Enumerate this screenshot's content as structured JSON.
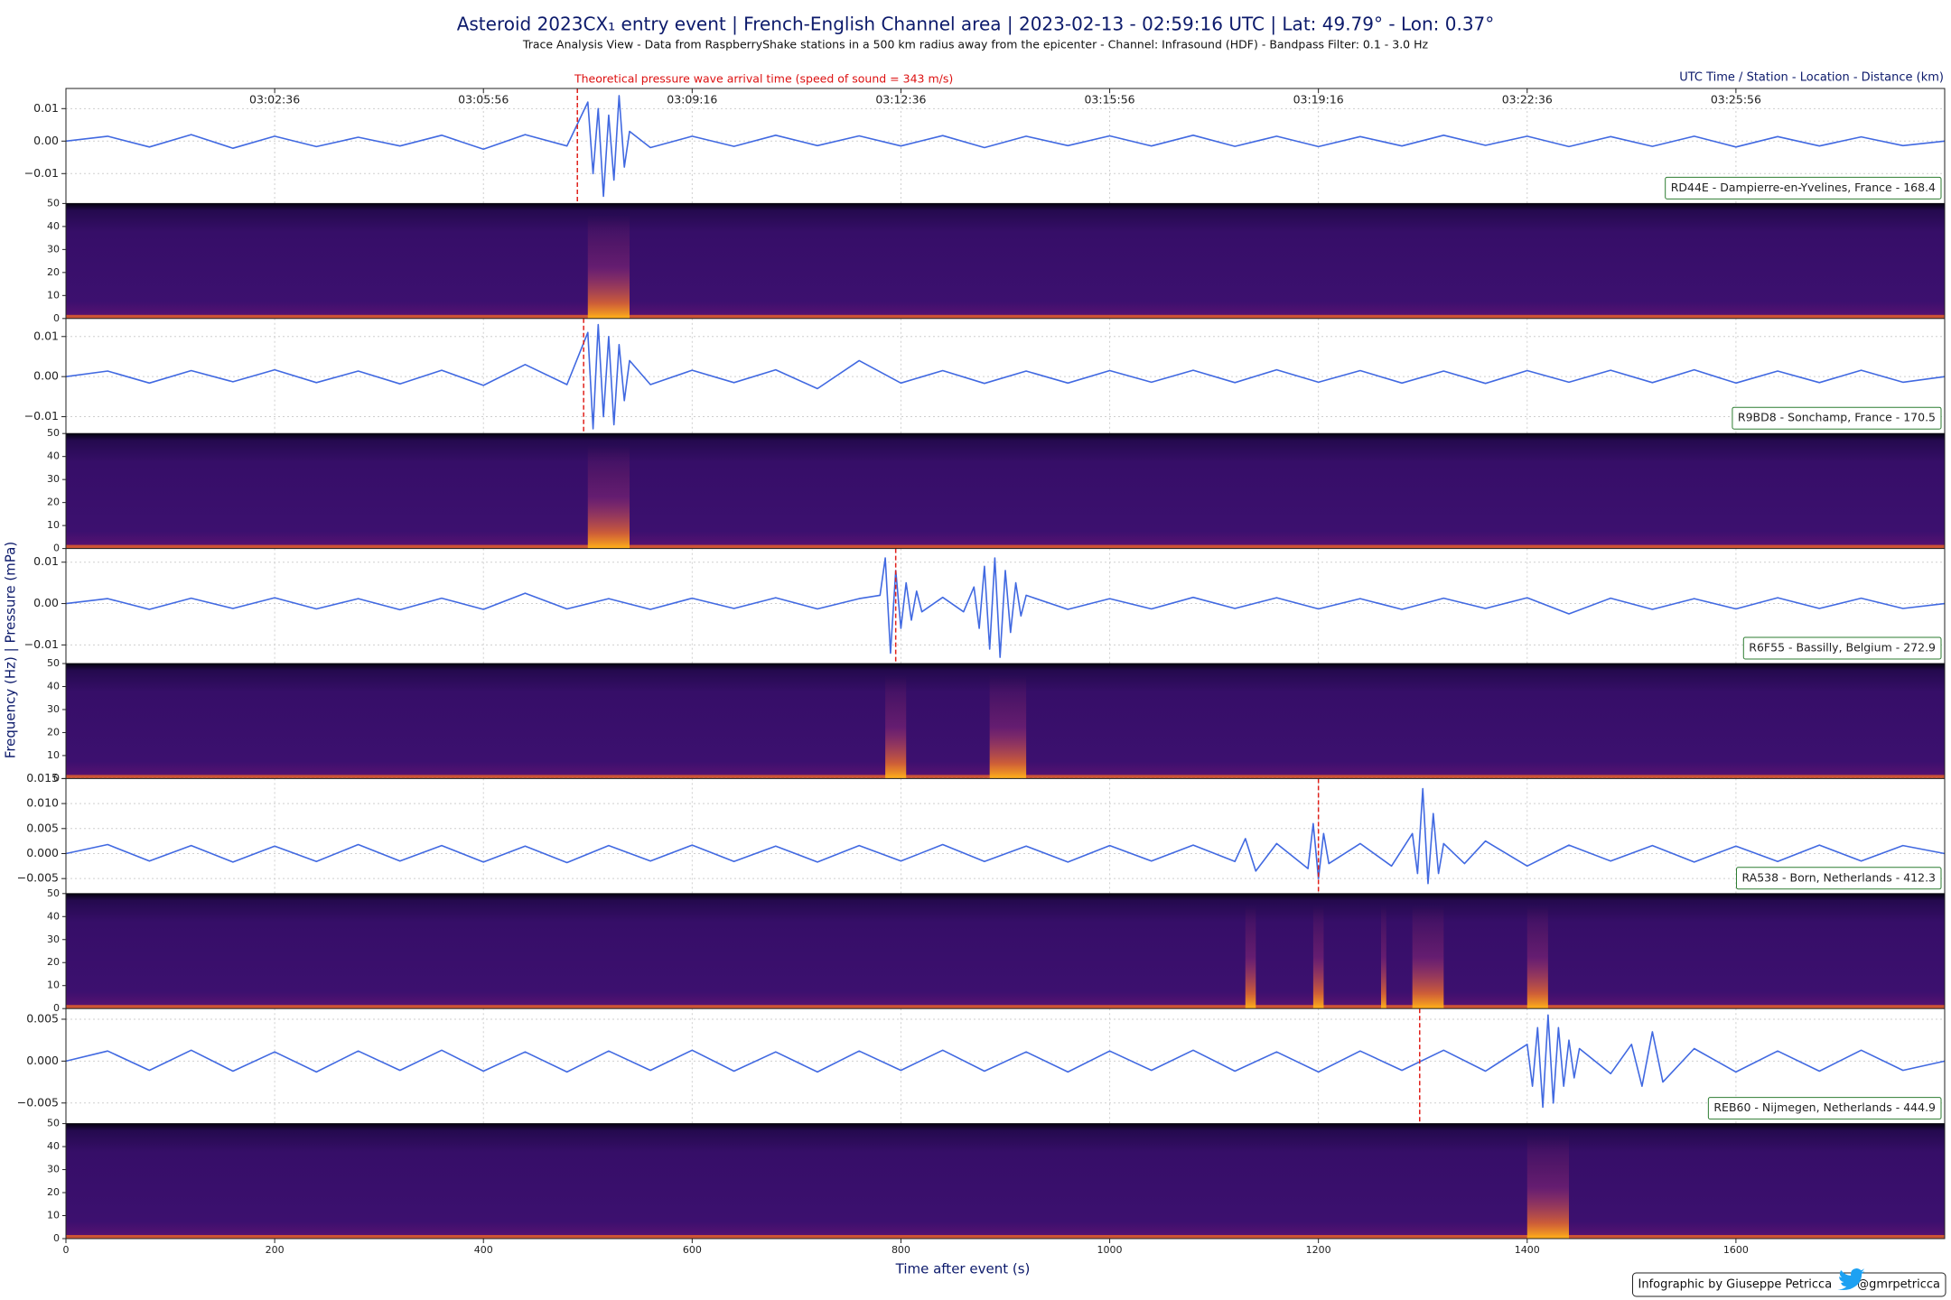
{
  "chart_data": {
    "type": "line",
    "title": "Asteroid 2023CX₁ entry event | French-English Channel area | 2023-02-13 - 02:59:16 UTC | Lat: 49.79° - Lon: 0.37°",
    "subtitle": "Trace Analysis View - Data from RaspberryShake stations in a 500 km radius away from the epicenter - Channel: Infrasound (HDF) - Bandpass Filter: 0.1 - 3.0 Hz",
    "header_right": "UTC Time / Station - Location - Distance (km)",
    "annotation": "Theoretical pressure wave arrival time (speed of sound = 343 m/s)",
    "ylabel": "Frequency (Hz) | Pressure (mPa)",
    "xlabel": "Time after event (s)",
    "credit": "Infographic by Giuseppe Petricca",
    "handle": "@gmrpetricca",
    "color": "#4169e1",
    "arrival_color": "#e0201a",
    "grid": true,
    "xlim": [
      0,
      1800
    ],
    "xticks": [
      0,
      200,
      400,
      600,
      800,
      1000,
      1200,
      1400,
      1600
    ],
    "top_xticks": [
      {
        "value": 200,
        "label": "03:02:36"
      },
      {
        "value": 400,
        "label": "03:05:56"
      },
      {
        "value": 600,
        "label": "03:09:16"
      },
      {
        "value": 800,
        "label": "03:12:36"
      },
      {
        "value": 1000,
        "label": "03:15:56"
      },
      {
        "value": 1200,
        "label": "03:19:16"
      },
      {
        "value": 1400,
        "label": "03:22:36"
      },
      {
        "value": 1600,
        "label": "03:25:56"
      }
    ],
    "stations": [
      {
        "name": "RD44E - Dampierre-en-Yvelines, France - 168.4",
        "arrival": 490,
        "ylim": [
          -0.0192,
          0.0162
        ],
        "yticks": [
          0.01,
          {
            "value": 0,
            "label": "0.00"
          },
          {
            "value": -0.01,
            "label": "−0.01"
          }
        ],
        "x": [
          0,
          40,
          80,
          120,
          160,
          200,
          240,
          280,
          320,
          360,
          400,
          440,
          480,
          500,
          505,
          510,
          515,
          520,
          525,
          530,
          535,
          540,
          560,
          600,
          640,
          680,
          720,
          760,
          800,
          840,
          880,
          920,
          960,
          1000,
          1040,
          1080,
          1120,
          1160,
          1200,
          1240,
          1280,
          1320,
          1360,
          1400,
          1440,
          1480,
          1520,
          1560,
          1600,
          1640,
          1680,
          1720,
          1760,
          1800
        ],
        "values": [
          0,
          0.0015,
          -0.0018,
          0.002,
          -0.0022,
          0.0015,
          -0.0017,
          0.0012,
          -0.0015,
          0.0018,
          -0.0025,
          0.002,
          -0.0015,
          0.012,
          -0.01,
          0.01,
          -0.017,
          0.008,
          -0.012,
          0.014,
          -0.008,
          0.003,
          -0.002,
          0.0015,
          -0.0016,
          0.0018,
          -0.0014,
          0.0016,
          -0.0015,
          0.0017,
          -0.002,
          0.0015,
          -0.0014,
          0.0016,
          -0.0015,
          0.0018,
          -0.0016,
          0.0015,
          -0.0017,
          0.0014,
          -0.0015,
          0.0018,
          -0.0013,
          0.0015,
          -0.0017,
          0.0014,
          -0.0016,
          0.0015,
          -0.0018,
          0.0014,
          -0.0015,
          0.0013,
          -0.0014,
          0
        ],
        "spectrogram": {
          "ylim": [
            0,
            50
          ],
          "yticks": [
            0,
            10,
            20,
            30,
            40,
            50
          ],
          "bursts": [
            [
              500,
              540
            ]
          ]
        }
      },
      {
        "name": "R9BD8 - Sonchamp, France - 170.5",
        "arrival": 496,
        "ylim": [
          -0.0142,
          0.0145
        ],
        "yticks": [
          0.01,
          {
            "value": 0,
            "label": "0.00"
          },
          {
            "value": -0.01,
            "label": "−0.01"
          }
        ],
        "x": [
          0,
          40,
          80,
          120,
          160,
          200,
          240,
          280,
          320,
          360,
          400,
          440,
          480,
          500,
          505,
          510,
          515,
          520,
          525,
          530,
          535,
          540,
          560,
          600,
          640,
          680,
          720,
          760,
          800,
          840,
          880,
          920,
          960,
          1000,
          1040,
          1080,
          1120,
          1160,
          1200,
          1240,
          1280,
          1320,
          1360,
          1400,
          1440,
          1480,
          1520,
          1560,
          1600,
          1640,
          1680,
          1720,
          1760,
          1800
        ],
        "values": [
          0,
          0.0014,
          -0.0016,
          0.0015,
          -0.0013,
          0.0017,
          -0.0015,
          0.0014,
          -0.0018,
          0.0016,
          -0.0022,
          0.003,
          -0.002,
          0.011,
          -0.013,
          0.013,
          -0.01,
          0.01,
          -0.012,
          0.008,
          -0.006,
          0.004,
          -0.002,
          0.0016,
          -0.0015,
          0.0017,
          -0.003,
          0.004,
          -0.0016,
          0.0015,
          -0.0017,
          0.0014,
          -0.0016,
          0.0015,
          -0.0014,
          0.0016,
          -0.0015,
          0.0017,
          -0.0014,
          0.0015,
          -0.0016,
          0.0014,
          -0.0017,
          0.0015,
          -0.0014,
          0.0016,
          -0.0015,
          0.0017,
          -0.0016,
          0.0014,
          -0.0015,
          0.0016,
          -0.0014,
          0
        ],
        "spectrogram": {
          "ylim": [
            0,
            50
          ],
          "yticks": [
            0,
            10,
            20,
            30,
            40,
            50
          ],
          "bursts": [
            [
              500,
              540
            ]
          ]
        }
      },
      {
        "name": "R6F55 - Bassilly, Belgium - 272.9",
        "arrival": 795,
        "ylim": [
          -0.0145,
          0.0133
        ],
        "yticks": [
          0.01,
          {
            "value": 0,
            "label": "0.00"
          },
          {
            "value": -0.01,
            "label": "−0.01"
          }
        ],
        "x": [
          0,
          40,
          80,
          120,
          160,
          200,
          240,
          280,
          320,
          360,
          400,
          440,
          480,
          520,
          560,
          600,
          640,
          680,
          720,
          760,
          780,
          785,
          790,
          795,
          800,
          805,
          810,
          815,
          820,
          840,
          860,
          870,
          875,
          880,
          885,
          890,
          895,
          900,
          905,
          910,
          915,
          920,
          960,
          1000,
          1040,
          1080,
          1120,
          1160,
          1200,
          1240,
          1280,
          1320,
          1360,
          1400,
          1440,
          1480,
          1520,
          1560,
          1600,
          1640,
          1680,
          1720,
          1760,
          1800
        ],
        "values": [
          0,
          0.0012,
          -0.0014,
          0.0013,
          -0.0012,
          0.0014,
          -0.0013,
          0.0012,
          -0.0015,
          0.0013,
          -0.0014,
          0.0025,
          -0.0013,
          0.0012,
          -0.0014,
          0.0013,
          -0.0012,
          0.0014,
          -0.0013,
          0.0012,
          0.002,
          0.011,
          -0.012,
          0.008,
          -0.006,
          0.005,
          -0.004,
          0.003,
          -0.002,
          0.0015,
          -0.002,
          0.004,
          -0.006,
          0.009,
          -0.011,
          0.011,
          -0.013,
          0.008,
          -0.007,
          0.005,
          -0.003,
          0.002,
          -0.0014,
          0.0012,
          -0.0013,
          0.0015,
          -0.0012,
          0.0014,
          -0.0013,
          0.0012,
          -0.0014,
          0.0013,
          -0.0012,
          0.0014,
          -0.0025,
          0.0013,
          -0.0014,
          0.0012,
          -0.0013,
          0.0014,
          -0.0012,
          0.0013,
          -0.0012,
          0
        ],
        "spectrogram": {
          "ylim": [
            0,
            50
          ],
          "yticks": [
            0,
            10,
            20,
            30,
            40,
            50
          ],
          "bursts": [
            [
              785,
              805
            ],
            [
              885,
              920
            ]
          ]
        }
      },
      {
        "name": "RA538 - Born, Netherlands - 412.3",
        "arrival": 1200,
        "ylim": [
          -0.008,
          0.015
        ],
        "yticks": [
          {
            "value": 0.015,
            "label": "0.015"
          },
          {
            "value": 0.01,
            "label": "0.010"
          },
          {
            "value": 0.005,
            "label": "0.005"
          },
          {
            "value": 0,
            "label": "0.000"
          },
          {
            "value": -0.005,
            "label": "−0.005"
          }
        ],
        "x": [
          0,
          40,
          80,
          120,
          160,
          200,
          240,
          280,
          320,
          360,
          400,
          440,
          480,
          520,
          560,
          600,
          640,
          680,
          720,
          760,
          800,
          840,
          880,
          920,
          960,
          1000,
          1040,
          1080,
          1120,
          1130,
          1140,
          1160,
          1190,
          1195,
          1200,
          1205,
          1210,
          1240,
          1270,
          1290,
          1295,
          1300,
          1305,
          1310,
          1315,
          1320,
          1340,
          1360,
          1400,
          1440,
          1480,
          1520,
          1560,
          1600,
          1640,
          1680,
          1720,
          1760,
          1800
        ],
        "values": [
          0,
          0.0018,
          -0.0015,
          0.0016,
          -0.0017,
          0.0015,
          -0.0016,
          0.0018,
          -0.0015,
          0.0016,
          -0.0017,
          0.0015,
          -0.0018,
          0.0016,
          -0.0015,
          0.0017,
          -0.0016,
          0.0015,
          -0.0017,
          0.0016,
          -0.0015,
          0.0018,
          -0.0016,
          0.0015,
          -0.0017,
          0.0016,
          -0.0015,
          0.0017,
          -0.0016,
          0.003,
          -0.0035,
          0.002,
          -0.003,
          0.006,
          -0.005,
          0.004,
          -0.002,
          0.002,
          -0.0025,
          0.004,
          -0.004,
          0.013,
          -0.006,
          0.008,
          -0.004,
          0.002,
          -0.002,
          0.0025,
          -0.0025,
          0.0017,
          -0.0015,
          0.0016,
          -0.0017,
          0.0015,
          -0.0016,
          0.0017,
          -0.0015,
          0.0016,
          0
        ],
        "spectrogram": {
          "ylim": [
            0,
            50
          ],
          "yticks": [
            0,
            10,
            20,
            30,
            40,
            50
          ],
          "bursts": [
            [
              1130,
              1140
            ],
            [
              1195,
              1205
            ],
            [
              1260,
              1265
            ],
            [
              1290,
              1320
            ],
            [
              1400,
              1420
            ]
          ]
        }
      },
      {
        "name": "REB60 - Nijmegen, Netherlands - 444.9",
        "arrival": 1297,
        "ylim": [
          -0.00746,
          0.00627
        ],
        "yticks": [
          {
            "value": 0.005,
            "label": "0.005"
          },
          {
            "value": 0,
            "label": "0.000"
          },
          {
            "value": -0.005,
            "label": "−0.005"
          }
        ],
        "x": [
          0,
          40,
          80,
          120,
          160,
          200,
          240,
          280,
          320,
          360,
          400,
          440,
          480,
          520,
          560,
          600,
          640,
          680,
          720,
          760,
          800,
          840,
          880,
          920,
          960,
          1000,
          1040,
          1080,
          1120,
          1160,
          1200,
          1240,
          1280,
          1320,
          1360,
          1400,
          1405,
          1410,
          1415,
          1420,
          1425,
          1430,
          1435,
          1440,
          1445,
          1450,
          1480,
          1500,
          1510,
          1520,
          1530,
          1560,
          1600,
          1640,
          1680,
          1720,
          1760,
          1800
        ],
        "values": [
          0,
          0.0012,
          -0.0011,
          0.0013,
          -0.0012,
          0.0011,
          -0.0013,
          0.0012,
          -0.0011,
          0.0013,
          -0.0012,
          0.0011,
          -0.0013,
          0.0012,
          -0.0011,
          0.0013,
          -0.0012,
          0.0011,
          -0.0013,
          0.0012,
          -0.0011,
          0.0013,
          -0.0012,
          0.0011,
          -0.0013,
          0.0012,
          -0.0011,
          0.0013,
          -0.0012,
          0.0011,
          -0.0013,
          0.0012,
          -0.0011,
          0.0013,
          -0.0012,
          0.002,
          -0.003,
          0.004,
          -0.0055,
          0.0055,
          -0.005,
          0.004,
          -0.003,
          0.0025,
          -0.002,
          0.0015,
          -0.0015,
          0.002,
          -0.003,
          0.0035,
          -0.0025,
          0.0015,
          -0.0013,
          0.0012,
          -0.0012,
          0.0013,
          -0.0011,
          0
        ],
        "spectrogram": {
          "ylim": [
            0,
            50
          ],
          "yticks": [
            0,
            10,
            20,
            30,
            40,
            50
          ],
          "bursts": [
            [
              1400,
              1440
            ]
          ]
        }
      }
    ]
  }
}
